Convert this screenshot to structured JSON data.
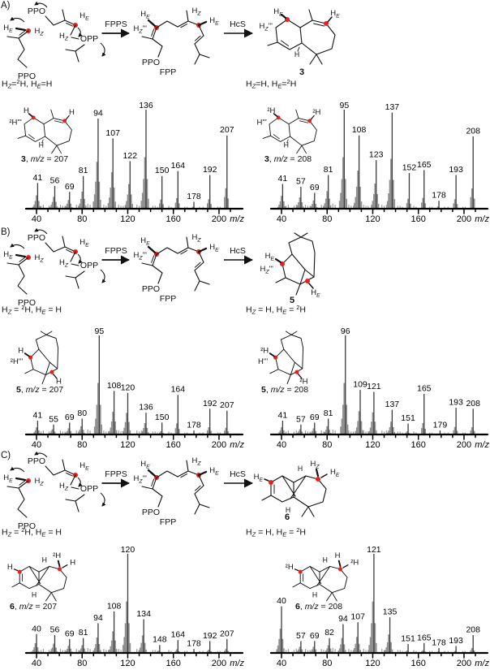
{
  "colors": {
    "accent_red": "#e8211d",
    "bar_minor": "#909090",
    "bar_main": "#3c3c3c",
    "axis": "#000000",
    "text": "#111111"
  },
  "figure": {
    "panels": [
      {
        "tag": "A)",
        "scheme": {
          "ppo_top": "PPO",
          "ppo_bottom": "PPO",
          "opp": "OPP",
          "he": "H_E",
          "hz": "H_Z",
          "hz_hash": "H_Z'''",
          "enzyme1": "FPPS",
          "enzyme2": "HcS",
          "fpp_ppo": "PPO",
          "fpp_caption": "FPP",
          "product_number": "3",
          "product_labels": {
            "tl": "H_E",
            "side": "H_Z'''",
            "tr": "H_E",
            "j": "H"
          }
        },
        "left": {
          "condition": [
            {
              "t": "H"
            },
            {
              "t": "Z",
              "v": "sub",
              "i": true
            },
            {
              "t": "="
            },
            {
              "t": "2",
              "v": "sup"
            },
            {
              "t": "H, H"
            },
            {
              "t": "E",
              "v": "sub",
              "i": true
            },
            {
              "t": "=H"
            }
          ],
          "inset_labels": {
            "tl": "H",
            "side": "²H'''",
            "tr": "H",
            "j": "H"
          },
          "caption": [
            {
              "t": "3",
              "b": true
            },
            {
              "t": ", "
            },
            {
              "t": "m/z",
              "i": true
            },
            {
              "t": " = 207"
            }
          ]
        },
        "right": {
          "condition": [
            {
              "t": "H"
            },
            {
              "t": "Z",
              "v": "sub",
              "i": true
            },
            {
              "t": "=H, H"
            },
            {
              "t": "E",
              "v": "sub",
              "i": true
            },
            {
              "t": "="
            },
            {
              "t": "2",
              "v": "sup"
            },
            {
              "t": "H"
            }
          ],
          "inset_labels": {
            "tl": "²H",
            "side": "H'''",
            "tr": "²H",
            "j": "H"
          },
          "caption": [
            {
              "t": "3",
              "b": true
            },
            {
              "t": ", "
            },
            {
              "t": "m/z",
              "i": true
            },
            {
              "t": " = 208"
            }
          ]
        }
      },
      {
        "tag": "B)",
        "scheme": {
          "ppo_top": "PPO",
          "ppo_bottom": "PPO",
          "opp": "OPP",
          "he": "H_E",
          "hz": "H_Z",
          "hz_hash": "H_Z'''",
          "enzyme1": "FPPS",
          "enzyme2": "HcS",
          "fpp_ppo": "PPO",
          "fpp_caption": "FPP",
          "product_number": "5",
          "product_labels": {
            "tl": "H_E",
            "side": "H_Z'''",
            "br": "H_E"
          }
        },
        "left": {
          "condition": [
            {
              "t": "H"
            },
            {
              "t": "Z",
              "v": "sub",
              "i": true
            },
            {
              "t": " = "
            },
            {
              "t": "2",
              "v": "sup"
            },
            {
              "t": "H, H"
            },
            {
              "t": "E",
              "v": "sub",
              "i": true
            },
            {
              "t": " = H"
            }
          ],
          "inset_labels": {
            "tl": "H",
            "side": "²H'''",
            "br": "H"
          },
          "caption": [
            {
              "t": "5",
              "b": true
            },
            {
              "t": ", "
            },
            {
              "t": "m/z",
              "i": true
            },
            {
              "t": " = 207"
            }
          ]
        },
        "right": {
          "condition": [
            {
              "t": "H"
            },
            {
              "t": "Z",
              "v": "sub",
              "i": true
            },
            {
              "t": " = H, H"
            },
            {
              "t": "E",
              "v": "sub",
              "i": true
            },
            {
              "t": " = "
            },
            {
              "t": "2",
              "v": "sup"
            },
            {
              "t": "H"
            }
          ],
          "inset_labels": {
            "tl": "²H",
            "side": "H'''",
            "br": "²H"
          },
          "caption": [
            {
              "t": "5",
              "b": true
            },
            {
              "t": ", "
            },
            {
              "t": "m/z",
              "i": true
            },
            {
              "t": " = 208"
            }
          ]
        }
      },
      {
        "tag": "C)",
        "scheme": {
          "ppo_top": "PPO",
          "ppo_bottom": "PPO",
          "opp": "OPP",
          "he": "H_E",
          "hz": "H_Z",
          "hz_hash": "H_Z'''",
          "enzyme1": "FPPS",
          "enzyme2": "HcS",
          "fpp_ppo": "PPO",
          "fpp_caption": "FPP",
          "product_number": "6",
          "product_labels": {
            "left": "H_E",
            "top": "H_Z",
            "right": "H_E",
            "j1": "H",
            "j2": "H"
          }
        },
        "left": {
          "condition": [
            {
              "t": "H"
            },
            {
              "t": "Z",
              "v": "sub",
              "i": true
            },
            {
              "t": " = "
            },
            {
              "t": "2",
              "v": "sup"
            },
            {
              "t": "H, H"
            },
            {
              "t": "E",
              "v": "sub",
              "i": true
            },
            {
              "t": " = H"
            }
          ],
          "inset_labels": {
            "left": "H",
            "top": "²H",
            "right": "H",
            "j1": "H",
            "j2": "H"
          },
          "caption": [
            {
              "t": "6",
              "b": true
            },
            {
              "t": ", "
            },
            {
              "t": "m/z",
              "i": true
            },
            {
              "t": " = 207"
            }
          ]
        },
        "right": {
          "condition": [
            {
              "t": "H"
            },
            {
              "t": "Z",
              "v": "sub",
              "i": true
            },
            {
              "t": " = H, H"
            },
            {
              "t": "E",
              "v": "sub",
              "i": true
            },
            {
              "t": " = "
            },
            {
              "t": "2",
              "v": "sup"
            },
            {
              "t": "H"
            }
          ],
          "inset_labels": {
            "left": "²H",
            "top": "H",
            "right": "²H",
            "j1": "H",
            "j2": "H"
          },
          "caption": [
            {
              "t": "6",
              "b": true
            },
            {
              "t": ", "
            },
            {
              "t": "m/z",
              "i": true
            },
            {
              "t": " = 208"
            }
          ]
        }
      }
    ]
  },
  "chart_data": [
    {
      "type": "bar",
      "panel": "A",
      "side": "left",
      "compound": "3",
      "parent_mz": 207,
      "title": "3, m/z = 207",
      "xlabel": "m/z",
      "x_ticks": [
        40,
        80,
        120,
        160,
        200
      ],
      "xlim": [
        35,
        215
      ],
      "ylim": [
        0,
        100
      ],
      "grid": false,
      "peaks": [
        {
          "mz": 41,
          "i": 26
        },
        {
          "mz": 56,
          "i": 23
        },
        {
          "mz": 69,
          "i": 17
        },
        {
          "mz": 81,
          "i": 33
        },
        {
          "mz": 94,
          "i": 91
        },
        {
          "mz": 107,
          "i": 71
        },
        {
          "mz": 122,
          "i": 48
        },
        {
          "mz": 136,
          "i": 100
        },
        {
          "mz": 150,
          "i": 33
        },
        {
          "mz": 164,
          "i": 38
        },
        {
          "mz": 178,
          "i": 7
        },
        {
          "mz": 192,
          "i": 34
        },
        {
          "mz": 207,
          "i": 74
        }
      ]
    },
    {
      "type": "bar",
      "panel": "A",
      "side": "right",
      "compound": "3",
      "parent_mz": 208,
      "title": "3, m/z = 208",
      "xlabel": "m/z",
      "x_ticks": [
        40,
        80,
        120,
        160,
        200
      ],
      "xlim": [
        35,
        215
      ],
      "ylim": [
        0,
        100
      ],
      "grid": false,
      "peaks": [
        {
          "mz": 41,
          "i": 25
        },
        {
          "mz": 57,
          "i": 22
        },
        {
          "mz": 69,
          "i": 16
        },
        {
          "mz": 81,
          "i": 34
        },
        {
          "mz": 95,
          "i": 100
        },
        {
          "mz": 108,
          "i": 74
        },
        {
          "mz": 123,
          "i": 49
        },
        {
          "mz": 137,
          "i": 97
        },
        {
          "mz": 152,
          "i": 36
        },
        {
          "mz": 165,
          "i": 39
        },
        {
          "mz": 178,
          "i": 8
        },
        {
          "mz": 193,
          "i": 34
        },
        {
          "mz": 208,
          "i": 73
        }
      ]
    },
    {
      "type": "bar",
      "panel": "B",
      "side": "left",
      "compound": "5",
      "parent_mz": 207,
      "title": "5, m/z = 207",
      "xlabel": "m/z",
      "x_ticks": [
        40,
        80,
        120,
        160,
        200
      ],
      "xlim": [
        35,
        215
      ],
      "ylim": [
        0,
        100
      ],
      "grid": false,
      "peaks": [
        {
          "mz": 41,
          "i": 14
        },
        {
          "mz": 55,
          "i": 10
        },
        {
          "mz": 69,
          "i": 12
        },
        {
          "mz": 80,
          "i": 16
        },
        {
          "mz": 95,
          "i": 100
        },
        {
          "mz": 108,
          "i": 44
        },
        {
          "mz": 120,
          "i": 42
        },
        {
          "mz": 136,
          "i": 22
        },
        {
          "mz": 150,
          "i": 12
        },
        {
          "mz": 164,
          "i": 40
        },
        {
          "mz": 178,
          "i": 4
        },
        {
          "mz": 192,
          "i": 26
        },
        {
          "mz": 207,
          "i": 24
        }
      ]
    },
    {
      "type": "bar",
      "panel": "B",
      "side": "right",
      "compound": "5",
      "parent_mz": 208,
      "title": "5, m/z = 208",
      "xlabel": "m/z",
      "x_ticks": [
        40,
        80,
        120,
        160,
        200
      ],
      "xlim": [
        35,
        215
      ],
      "ylim": [
        0,
        100
      ],
      "grid": false,
      "peaks": [
        {
          "mz": 41,
          "i": 14
        },
        {
          "mz": 57,
          "i": 10
        },
        {
          "mz": 69,
          "i": 12
        },
        {
          "mz": 81,
          "i": 16
        },
        {
          "mz": 96,
          "i": 100
        },
        {
          "mz": 109,
          "i": 45
        },
        {
          "mz": 121,
          "i": 43
        },
        {
          "mz": 137,
          "i": 25
        },
        {
          "mz": 151,
          "i": 11
        },
        {
          "mz": 165,
          "i": 41
        },
        {
          "mz": 179,
          "i": 4
        },
        {
          "mz": 193,
          "i": 27
        },
        {
          "mz": 208,
          "i": 26
        }
      ]
    },
    {
      "type": "bar",
      "panel": "C",
      "side": "left",
      "compound": "6",
      "parent_mz": 207,
      "title": "6, m/z = 207",
      "xlabel": "m/z",
      "x_ticks": [
        40,
        80,
        120,
        160,
        200
      ],
      "xlim": [
        35,
        215
      ],
      "ylim": [
        0,
        100
      ],
      "grid": false,
      "peaks": [
        {
          "mz": 40,
          "i": 19
        },
        {
          "mz": 56,
          "i": 18
        },
        {
          "mz": 69,
          "i": 14
        },
        {
          "mz": 81,
          "i": 15
        },
        {
          "mz": 94,
          "i": 30
        },
        {
          "mz": 108,
          "i": 42
        },
        {
          "mz": 120,
          "i": 100
        },
        {
          "mz": 134,
          "i": 34
        },
        {
          "mz": 148,
          "i": 8
        },
        {
          "mz": 164,
          "i": 13
        },
        {
          "mz": 178,
          "i": 4
        },
        {
          "mz": 192,
          "i": 12
        },
        {
          "mz": 207,
          "i": 14
        }
      ]
    },
    {
      "type": "bar",
      "panel": "C",
      "side": "right",
      "compound": "6",
      "parent_mz": 208,
      "title": "6, m/z = 208",
      "xlabel": "m/z",
      "x_ticks": [
        40,
        80,
        120,
        160,
        200
      ],
      "xlim": [
        35,
        215
      ],
      "ylim": [
        0,
        100
      ],
      "grid": false,
      "peaks": [
        {
          "mz": 40,
          "i": 47
        },
        {
          "mz": 57,
          "i": 12
        },
        {
          "mz": 69,
          "i": 12
        },
        {
          "mz": 82,
          "i": 15
        },
        {
          "mz": 94,
          "i": 29
        },
        {
          "mz": 107,
          "i": 31
        },
        {
          "mz": 121,
          "i": 100
        },
        {
          "mz": 135,
          "i": 36
        },
        {
          "mz": 151,
          "i": 9
        },
        {
          "mz": 165,
          "i": 10
        },
        {
          "mz": 178,
          "i": 5
        },
        {
          "mz": 193,
          "i": 7
        },
        {
          "mz": 208,
          "i": 18
        }
      ]
    }
  ],
  "chart_render_hints": {
    "cluster_profile_low": [
      [
        -4,
        0.08
      ],
      [
        -3,
        0.16
      ],
      [
        -2,
        0.3
      ],
      [
        -1,
        0.52
      ],
      [
        1,
        0.3
      ],
      [
        2,
        0.1
      ]
    ],
    "cluster_profile_high": [
      [
        -2,
        0.16
      ],
      [
        -1,
        0.28
      ],
      [
        1,
        0.14
      ]
    ],
    "baseline_noise": [
      [
        44,
        3
      ],
      [
        46,
        4
      ],
      [
        51,
        3
      ],
      [
        53,
        4
      ],
      [
        61,
        4
      ],
      [
        63,
        3
      ],
      [
        65,
        3
      ],
      [
        75,
        4
      ],
      [
        77,
        3
      ],
      [
        85,
        5
      ],
      [
        87,
        4
      ],
      [
        99,
        4
      ],
      [
        101,
        3
      ],
      [
        103,
        3
      ],
      [
        112,
        4
      ],
      [
        114,
        3
      ],
      [
        116,
        3
      ],
      [
        128,
        4
      ],
      [
        130,
        3
      ],
      [
        132,
        4
      ],
      [
        142,
        3
      ],
      [
        144,
        3
      ],
      [
        146,
        2
      ],
      [
        156,
        3
      ],
      [
        158,
        2
      ],
      [
        170,
        2
      ],
      [
        172,
        2
      ],
      [
        183,
        2
      ],
      [
        186,
        2
      ],
      [
        199,
        2
      ],
      [
        201,
        2
      ]
    ]
  }
}
